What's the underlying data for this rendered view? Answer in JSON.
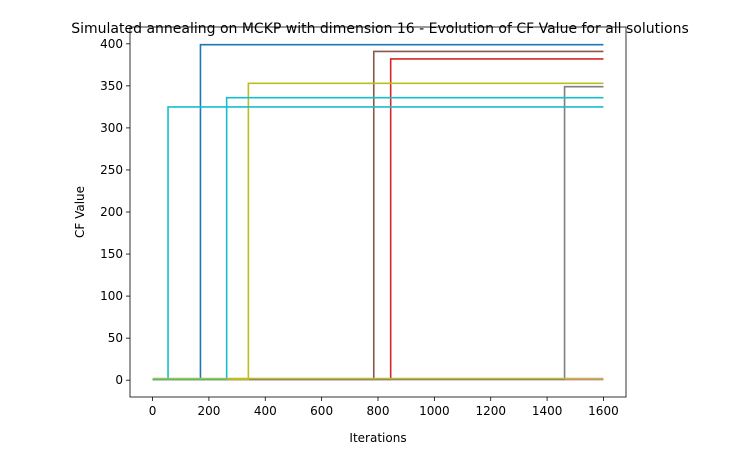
{
  "chart_data": {
    "type": "line",
    "title": "Simulated annealing on MCKP with dimension 16 - Evolution of CF Value for all solutions",
    "xlabel": "Iterations",
    "ylabel": "CF Value",
    "xlim": [
      -80,
      1680
    ],
    "ylim": [
      -20,
      420
    ],
    "xticks": [
      0,
      200,
      400,
      600,
      800,
      1000,
      1200,
      1400,
      1600
    ],
    "yticks": [
      0,
      50,
      100,
      150,
      200,
      250,
      300,
      350,
      400
    ],
    "grid": false,
    "legend": "none",
    "series": [
      {
        "color": "#1f77b4",
        "points": [
          [
            0,
            1
          ],
          [
            170,
            1
          ],
          [
            170,
            399
          ],
          [
            1600,
            399
          ]
        ]
      },
      {
        "color": "#ff7f0e",
        "points": [
          [
            0,
            1
          ],
          [
            1600,
            1
          ]
        ]
      },
      {
        "color": "#2ca02c",
        "points": [
          [
            0,
            1
          ],
          [
            1600,
            1
          ]
        ]
      },
      {
        "color": "#d62728",
        "points": [
          [
            0,
            1
          ],
          [
            845,
            1
          ],
          [
            845,
            382
          ],
          [
            1600,
            382
          ]
        ]
      },
      {
        "color": "#9467bd",
        "points": [
          [
            0,
            1
          ],
          [
            1600,
            1
          ]
        ]
      },
      {
        "color": "#8c564b",
        "points": [
          [
            0,
            1
          ],
          [
            785,
            1
          ],
          [
            785,
            391
          ],
          [
            1600,
            391
          ]
        ]
      },
      {
        "color": "#e377c2",
        "points": [
          [
            0,
            1
          ],
          [
            1600,
            1
          ]
        ]
      },
      {
        "color": "#7f7f7f",
        "points": [
          [
            0,
            1
          ],
          [
            1462,
            1
          ],
          [
            1462,
            349
          ],
          [
            1600,
            349
          ]
        ]
      },
      {
        "color": "#bcbd22",
        "points": [
          [
            0,
            1
          ],
          [
            340,
            1
          ],
          [
            340,
            353
          ],
          [
            1600,
            353
          ]
        ]
      },
      {
        "color": "#17becf",
        "points": [
          [
            0,
            1
          ],
          [
            263,
            1
          ],
          [
            263,
            336
          ],
          [
            1600,
            336
          ]
        ]
      },
      {
        "color": "#17becf",
        "points": [
          [
            0,
            1
          ],
          [
            55,
            1
          ],
          [
            55,
            325
          ],
          [
            1600,
            325
          ]
        ]
      },
      {
        "color": "#bcbd22",
        "points": [
          [
            0,
            2
          ],
          [
            1600,
            2
          ]
        ]
      }
    ]
  }
}
